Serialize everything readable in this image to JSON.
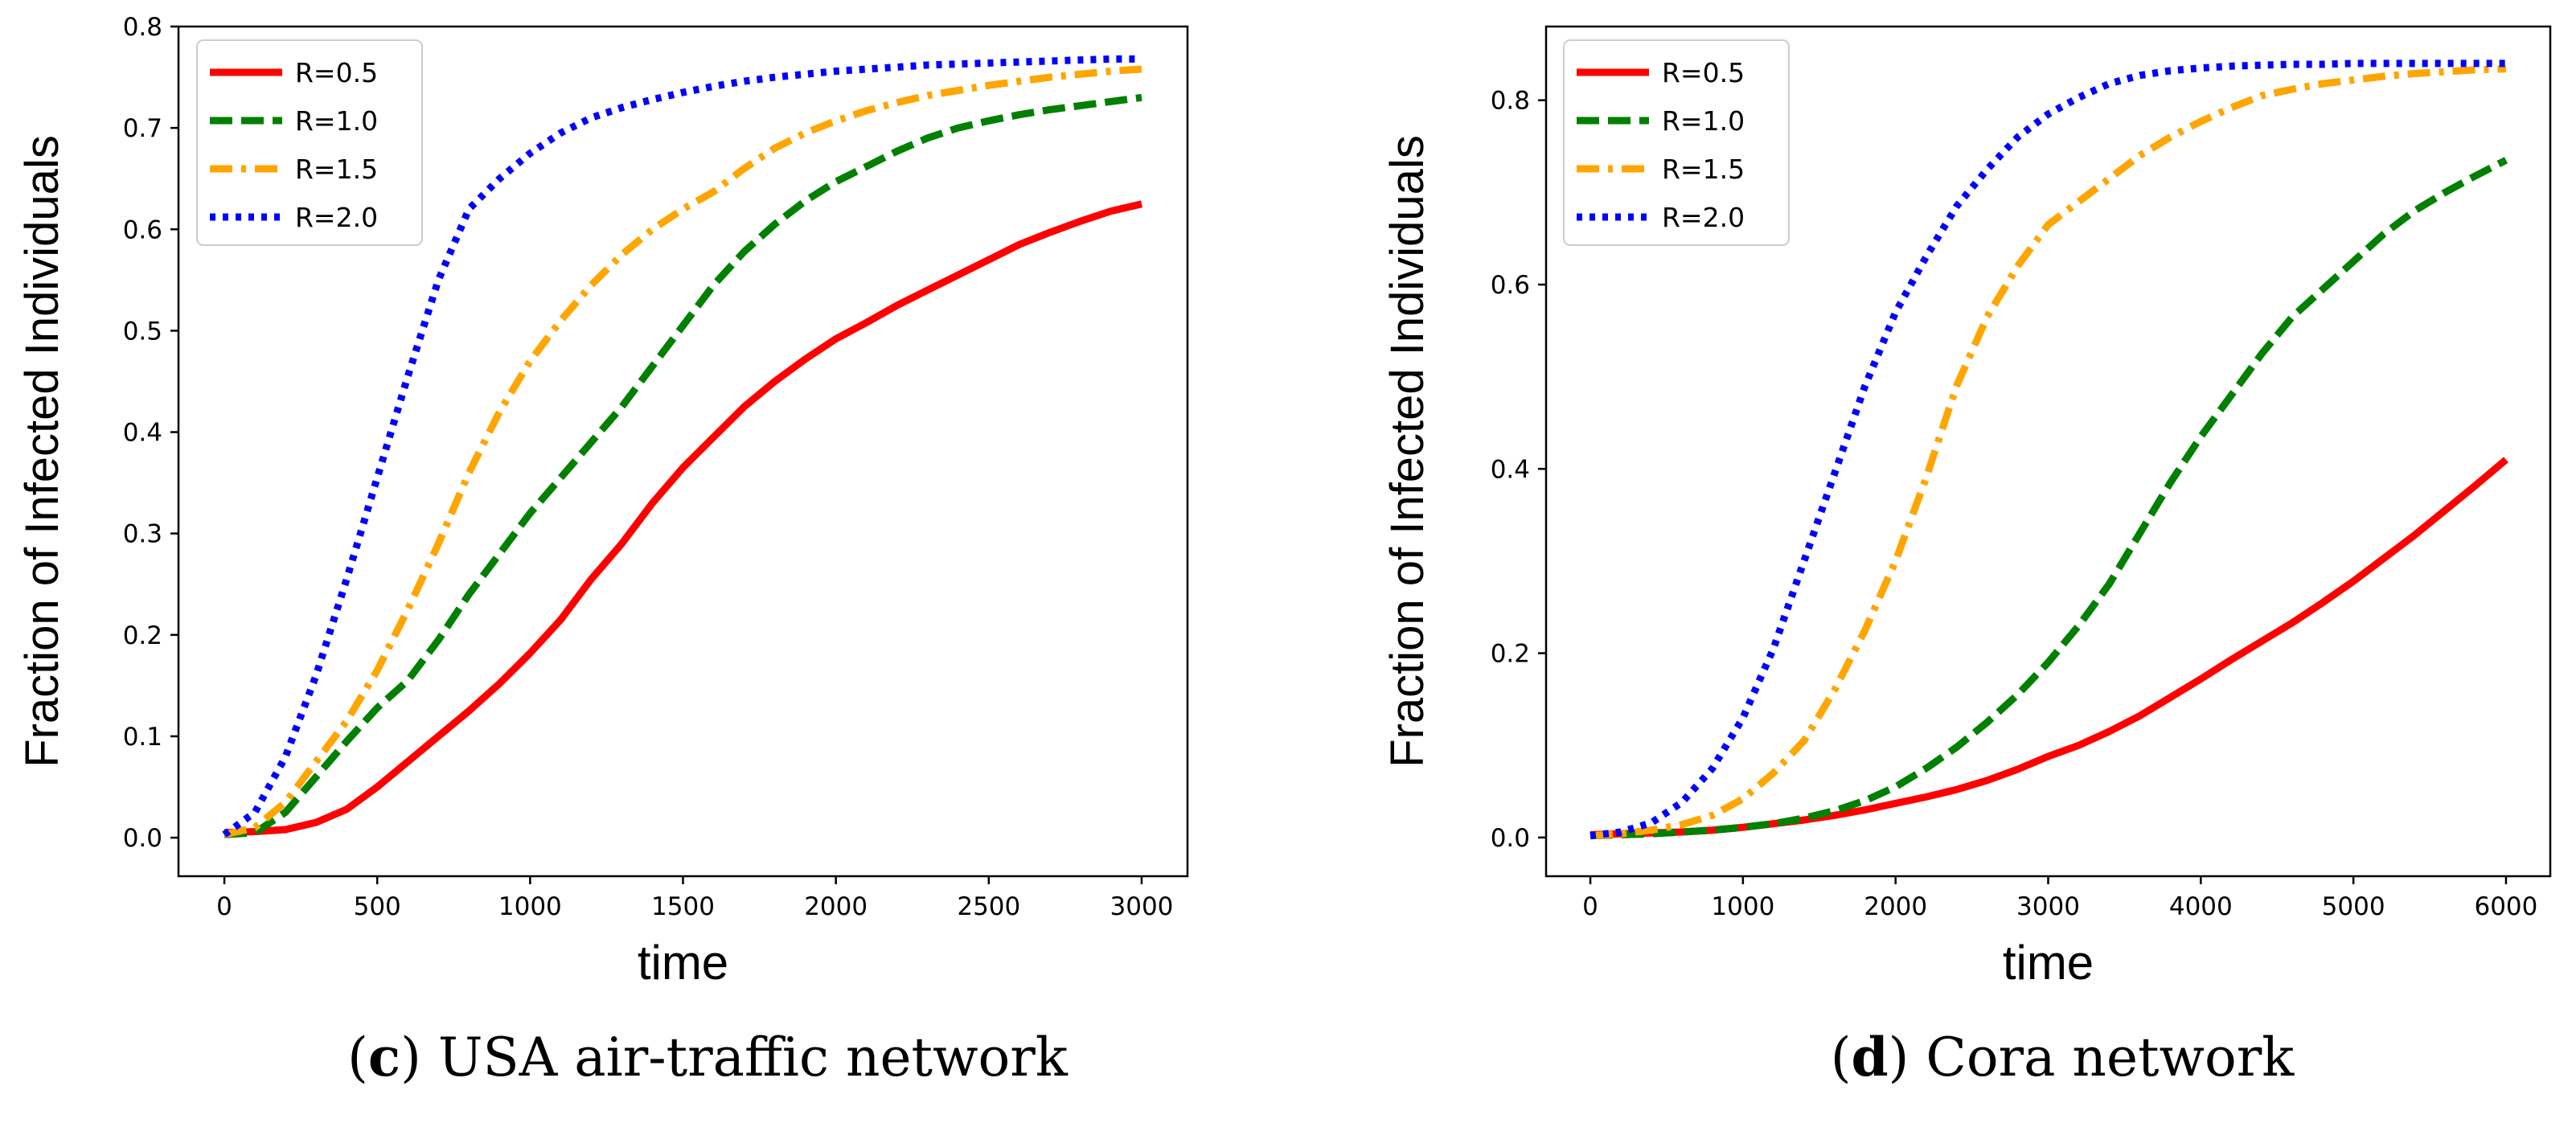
{
  "chart_data": [
    {
      "id": "c",
      "type": "line",
      "caption": {
        "letter": "c",
        "text": " USA air-traffic network"
      },
      "xlabel": "time",
      "ylabel": "Fraction of Infected Individuals",
      "xlim": [
        -150,
        3150
      ],
      "ylim": [
        -0.038,
        0.8
      ],
      "xticks": [
        0,
        500,
        1000,
        1500,
        2000,
        2500,
        3000
      ],
      "yticks": [
        0.0,
        0.1,
        0.2,
        0.3,
        0.4,
        0.5,
        0.6,
        0.7,
        0.8
      ],
      "ytick_decimals": 1,
      "legend_position": "top-left",
      "series": [
        {
          "name": "R=0.5",
          "color": "#ff0000",
          "style": "solid",
          "x": [
            0,
            100,
            200,
            300,
            400,
            500,
            600,
            700,
            800,
            900,
            1000,
            1100,
            1200,
            1300,
            1400,
            1500,
            1600,
            1700,
            1800,
            1900,
            2000,
            2100,
            2200,
            2300,
            2400,
            2500,
            2600,
            2700,
            2800,
            2900,
            3000
          ],
          "y": [
            0.005,
            0.006,
            0.008,
            0.015,
            0.028,
            0.05,
            0.075,
            0.1,
            0.125,
            0.152,
            0.182,
            0.215,
            0.255,
            0.29,
            0.33,
            0.365,
            0.395,
            0.425,
            0.45,
            0.472,
            0.492,
            0.508,
            0.525,
            0.54,
            0.555,
            0.57,
            0.585,
            0.597,
            0.608,
            0.618,
            0.625
          ]
        },
        {
          "name": "R=1.0",
          "color": "#008000",
          "style": "dashed",
          "x": [
            0,
            100,
            200,
            300,
            400,
            500,
            600,
            700,
            800,
            900,
            1000,
            1100,
            1200,
            1300,
            1400,
            1500,
            1600,
            1700,
            1800,
            1900,
            2000,
            2100,
            2200,
            2300,
            2400,
            2500,
            2600,
            2700,
            2800,
            2900,
            3000
          ],
          "y": [
            0.003,
            0.005,
            0.025,
            0.06,
            0.095,
            0.128,
            0.155,
            0.195,
            0.24,
            0.28,
            0.32,
            0.355,
            0.39,
            0.425,
            0.465,
            0.505,
            0.545,
            0.578,
            0.605,
            0.628,
            0.647,
            0.662,
            0.677,
            0.69,
            0.7,
            0.707,
            0.713,
            0.718,
            0.722,
            0.726,
            0.73
          ]
        },
        {
          "name": "R=1.5",
          "color": "#ffa500",
          "style": "dashdot",
          "x": [
            0,
            100,
            200,
            300,
            400,
            500,
            600,
            700,
            800,
            900,
            1000,
            1100,
            1200,
            1300,
            1400,
            1500,
            1600,
            1700,
            1800,
            1900,
            2000,
            2100,
            2200,
            2300,
            2400,
            2500,
            2600,
            2700,
            2800,
            2900,
            3000
          ],
          "y": [
            0.003,
            0.01,
            0.035,
            0.075,
            0.115,
            0.165,
            0.225,
            0.29,
            0.36,
            0.42,
            0.47,
            0.51,
            0.545,
            0.575,
            0.6,
            0.62,
            0.637,
            0.66,
            0.68,
            0.695,
            0.707,
            0.717,
            0.725,
            0.732,
            0.737,
            0.742,
            0.746,
            0.75,
            0.753,
            0.756,
            0.758
          ]
        },
        {
          "name": "R=2.0",
          "color": "#0000ff",
          "style": "dotted",
          "x": [
            0,
            100,
            200,
            300,
            400,
            500,
            600,
            700,
            800,
            900,
            1000,
            1100,
            1200,
            1300,
            1400,
            1500,
            1600,
            1700,
            1800,
            1900,
            2000,
            2100,
            2200,
            2300,
            2400,
            2500,
            2600,
            2700,
            2800,
            2900,
            3000
          ],
          "y": [
            0.003,
            0.025,
            0.08,
            0.16,
            0.255,
            0.355,
            0.455,
            0.55,
            0.62,
            0.65,
            0.675,
            0.695,
            0.71,
            0.72,
            0.728,
            0.735,
            0.741,
            0.746,
            0.75,
            0.753,
            0.756,
            0.758,
            0.76,
            0.762,
            0.763,
            0.764,
            0.765,
            0.766,
            0.767,
            0.768,
            0.768
          ]
        }
      ]
    },
    {
      "id": "d",
      "type": "line",
      "caption": {
        "letter": "d",
        "text": " Cora network"
      },
      "xlabel": "time",
      "ylabel": "Fraction of Infected Individuals",
      "xlim": [
        -290,
        6290
      ],
      "ylim": [
        -0.042,
        0.88
      ],
      "xticks": [
        0,
        1000,
        2000,
        3000,
        4000,
        5000,
        6000
      ],
      "yticks": [
        0.0,
        0.2,
        0.4,
        0.6,
        0.8
      ],
      "ytick_decimals": 1,
      "legend_position": "top-left",
      "series": [
        {
          "name": "R=0.5",
          "color": "#ff0000",
          "style": "solid",
          "x": [
            0,
            200,
            400,
            600,
            800,
            1000,
            1200,
            1400,
            1600,
            1800,
            2000,
            2200,
            2400,
            2600,
            2800,
            3000,
            3200,
            3400,
            3600,
            3800,
            4000,
            4200,
            4400,
            4600,
            4800,
            5000,
            5200,
            5400,
            5600,
            5800,
            6000
          ],
          "y": [
            0.003,
            0.004,
            0.005,
            0.006,
            0.008,
            0.011,
            0.015,
            0.019,
            0.024,
            0.03,
            0.037,
            0.044,
            0.052,
            0.062,
            0.074,
            0.088,
            0.1,
            0.115,
            0.132,
            0.152,
            0.172,
            0.193,
            0.213,
            0.233,
            0.255,
            0.278,
            0.303,
            0.328,
            0.355,
            0.382,
            0.41
          ]
        },
        {
          "name": "R=1.0",
          "color": "#008000",
          "style": "dashed",
          "x": [
            0,
            200,
            400,
            600,
            800,
            1000,
            1200,
            1400,
            1600,
            1800,
            2000,
            2200,
            2400,
            2600,
            2800,
            3000,
            3200,
            3400,
            3600,
            3800,
            4000,
            4200,
            4400,
            4600,
            4800,
            5000,
            5200,
            5400,
            5600,
            5800,
            6000
          ],
          "y": [
            0.002,
            0.003,
            0.004,
            0.006,
            0.008,
            0.011,
            0.015,
            0.021,
            0.029,
            0.04,
            0.055,
            0.075,
            0.098,
            0.125,
            0.155,
            0.19,
            0.23,
            0.275,
            0.33,
            0.385,
            0.435,
            0.48,
            0.525,
            0.565,
            0.595,
            0.625,
            0.655,
            0.68,
            0.7,
            0.718,
            0.735
          ]
        },
        {
          "name": "R=1.5",
          "color": "#ffa500",
          "style": "dashdot",
          "x": [
            0,
            200,
            400,
            600,
            800,
            1000,
            1200,
            1400,
            1600,
            1800,
            2000,
            2200,
            2400,
            2600,
            2800,
            3000,
            3200,
            3400,
            3600,
            3800,
            4000,
            4200,
            4400,
            4600,
            4800,
            5000,
            5200,
            5400,
            5600,
            5800,
            6000
          ],
          "y": [
            0.002,
            0.004,
            0.008,
            0.014,
            0.024,
            0.042,
            0.07,
            0.105,
            0.16,
            0.225,
            0.3,
            0.39,
            0.49,
            0.565,
            0.62,
            0.665,
            0.69,
            0.715,
            0.74,
            0.76,
            0.777,
            0.792,
            0.805,
            0.812,
            0.818,
            0.822,
            0.826,
            0.829,
            0.831,
            0.833,
            0.834
          ]
        },
        {
          "name": "R=2.0",
          "color": "#0000ff",
          "style": "dotted",
          "x": [
            0,
            200,
            400,
            600,
            800,
            1000,
            1200,
            1400,
            1600,
            1800,
            2000,
            2200,
            2400,
            2600,
            2800,
            3000,
            3200,
            3400,
            3600,
            3800,
            4000,
            4200,
            4400,
            4600,
            4800,
            5000,
            5200,
            5400,
            5600,
            5800,
            6000
          ],
          "y": [
            0.002,
            0.006,
            0.016,
            0.038,
            0.075,
            0.13,
            0.205,
            0.3,
            0.395,
            0.49,
            0.57,
            0.63,
            0.685,
            0.725,
            0.76,
            0.785,
            0.803,
            0.818,
            0.827,
            0.832,
            0.835,
            0.837,
            0.838,
            0.839,
            0.839,
            0.84,
            0.84,
            0.84,
            0.84,
            0.84,
            0.84
          ]
        }
      ]
    }
  ]
}
